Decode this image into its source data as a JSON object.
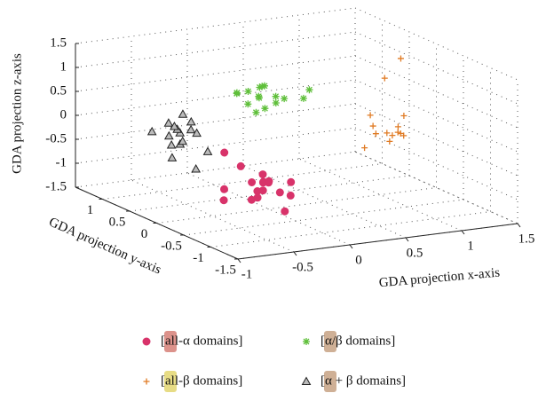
{
  "chart_data": {
    "type": "scatter3d",
    "xlabel": "GDA projection x-axis",
    "ylabel": "GDA projection y-axis",
    "zlabel": "GDA projection z-axis",
    "xlim": [
      -1,
      1.5
    ],
    "ylim": [
      -1.5,
      1.5
    ],
    "zlim": [
      -1.5,
      1.5
    ],
    "xticks": [
      -1,
      -0.5,
      0,
      0.5,
      1,
      1.5
    ],
    "yticks": [
      -1.5,
      -1,
      -0.5,
      0,
      0.5,
      1
    ],
    "zticks": [
      -1.5,
      -1,
      -0.5,
      0,
      0.5,
      1,
      1.5
    ],
    "grid": true,
    "series": [
      {
        "name": "[all-α domains]",
        "color": "#d8336a",
        "marker": "circle",
        "x": [
          -0.1,
          0.0,
          -0.2,
          0.05,
          -0.15,
          0.1,
          -0.05,
          0.0,
          -0.3,
          0.2,
          -0.1,
          0.15,
          -0.4,
          -0.25,
          0.0,
          -0.2,
          0.1,
          -0.05
        ],
        "y": [
          0,
          0.1,
          -0.1,
          0.2,
          0,
          -0.2,
          0.1,
          0,
          0.2,
          0,
          -0.1,
          0.1,
          0,
          0.3,
          -0.3,
          0.1,
          0.2,
          0
        ],
        "z": [
          -1.1,
          -1.0,
          -1.2,
          -1.05,
          -0.9,
          -1.15,
          -1.3,
          -0.95,
          -1.1,
          -1.0,
          -0.7,
          -1.25,
          -1.2,
          -0.4,
          -1.4,
          -0.6,
          -1.05,
          -1.1
        ]
      },
      {
        "name": "[α/β domains]",
        "color": "#5fbf3a",
        "marker": "star",
        "x": [
          0.4,
          0.35,
          0.5,
          0.3,
          0.45,
          0.6,
          0.25,
          0.4,
          0.55,
          0.7,
          0.2,
          0.5,
          0.38,
          0.42,
          0.8,
          0.3
        ],
        "y": [
          1,
          1.1,
          0.9,
          1,
          1.05,
          0.95,
          1.1,
          0.9,
          1,
          0.8,
          1,
          1.1,
          0.95,
          1.05,
          0.9,
          0.85
        ],
        "z": [
          0.2,
          0.3,
          0.25,
          0.1,
          0.4,
          0.15,
          0.3,
          0.5,
          0.05,
          0.2,
          0.35,
          -0.1,
          0.45,
          0.2,
          0.3,
          0
        ]
      },
      {
        "name": "[all-β domains]",
        "color": "#e07b24",
        "marker": "plus",
        "x": [
          1.3,
          1.35,
          1.25,
          1.4,
          1.3,
          1.2,
          1.45,
          1.3,
          1.5,
          1.1,
          1.35,
          1.28,
          1.4,
          1.2
        ],
        "y": [
          0.5,
          0.4,
          0.6,
          0.5,
          0.45,
          0.55,
          0.5,
          0.4,
          0.6,
          0.5,
          0.35,
          0.5,
          0.45,
          0.6
        ],
        "z": [
          -0.55,
          -0.5,
          -0.6,
          -0.45,
          -0.7,
          -0.4,
          -0.65,
          -0.55,
          -0.3,
          -0.8,
          -0.5,
          0.6,
          1.0,
          -0.2
        ]
      },
      {
        "name": "[α + β domains]",
        "color": "#222222",
        "marker": "triangle",
        "x": [
          -0.55,
          -0.5,
          -0.6,
          -0.45,
          -0.65,
          -0.55,
          -0.4,
          -0.7,
          -0.5,
          -0.6,
          -0.8,
          -0.35,
          -0.55,
          -0.5,
          -0.62,
          -0.48
        ],
        "y": [
          0.5,
          0.4,
          0.6,
          0.5,
          0.45,
          0.55,
          0.5,
          0.4,
          0.6,
          0.5,
          0.5,
          0.4,
          0.45,
          0.55,
          0.5,
          0.35
        ],
        "z": [
          0,
          0.1,
          -0.1,
          0.2,
          -0.2,
          0.05,
          -0.05,
          0.3,
          -0.3,
          0.15,
          0.1,
          -0.4,
          -0.15,
          0.35,
          -0.5,
          -0.7
        ]
      }
    ]
  }
}
